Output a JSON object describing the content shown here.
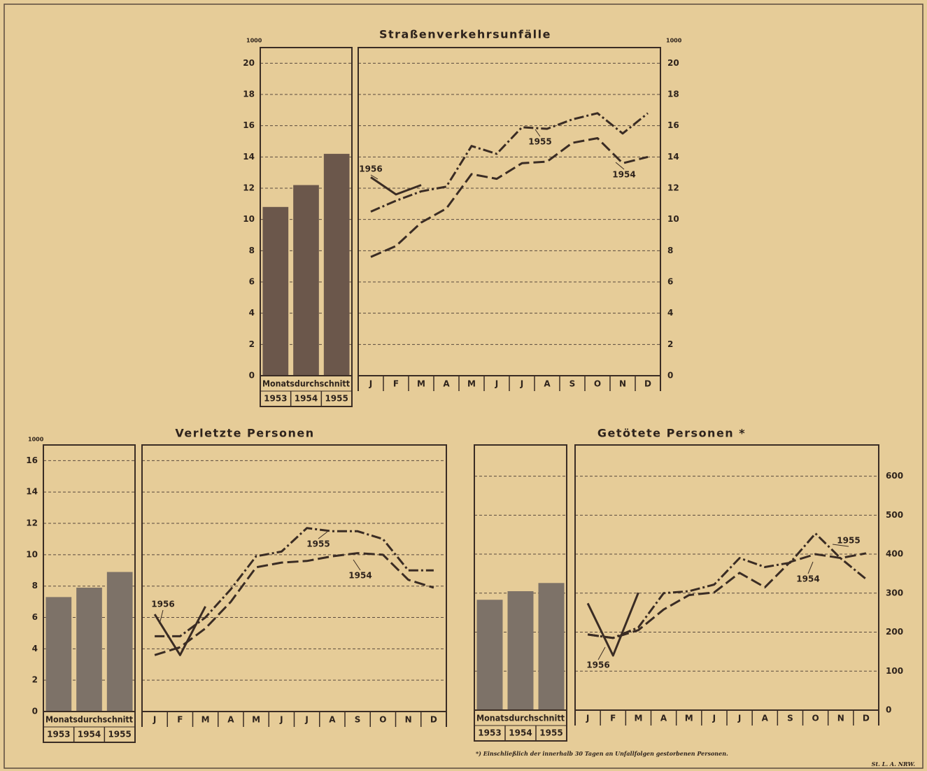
{
  "chart_data": [
    {
      "type": "bar",
      "unit": "1000",
      "group_label": "Monatsdurchschnitt",
      "categories": [
        "1953",
        "1954",
        "1955"
      ],
      "values": [
        10.8,
        12.2,
        14.2
      ],
      "color": "#6b574b",
      "ylim": [
        0,
        21
      ],
      "yticks": [
        0,
        2,
        4,
        6,
        8,
        10,
        12,
        14,
        16,
        18,
        20
      ],
      "tick_labels": "left",
      "grid": true
    },
    {
      "type": "line",
      "title": "Straßenverkehrsunfälle",
      "unit": "1000",
      "categories": [
        "J",
        "F",
        "M",
        "A",
        "M",
        "J",
        "J",
        "A",
        "S",
        "O",
        "N",
        "D"
      ],
      "series": [
        {
          "name": "1956",
          "style": "solid",
          "color": "#3a2c24",
          "values": [
            12.7,
            11.6,
            12.2,
            null,
            null,
            null,
            null,
            null,
            null,
            null,
            null,
            null
          ]
        },
        {
          "name": "1955",
          "style": "dashdot",
          "color": "#3a2c24",
          "values": [
            10.5,
            11.2,
            11.8,
            12.1,
            14.7,
            14.2,
            15.9,
            15.8,
            16.4,
            16.8,
            15.5,
            16.8
          ]
        },
        {
          "name": "1954",
          "style": "dashed",
          "color": "#3a2c24",
          "values": [
            7.6,
            8.3,
            9.8,
            10.7,
            12.9,
            12.6,
            13.6,
            13.7,
            14.9,
            15.2,
            13.6,
            14.0
          ]
        }
      ],
      "ylim": [
        0,
        21
      ],
      "yticks": [
        0,
        2,
        4,
        6,
        8,
        10,
        12,
        14,
        16,
        18,
        20
      ],
      "tick_labels": "right",
      "grid": true
    },
    {
      "type": "bar",
      "unit": "1000",
      "group_label": "Monatsdurchschnitt",
      "categories": [
        "1953",
        "1954",
        "1955"
      ],
      "values": [
        7.3,
        7.9,
        8.9
      ],
      "color": "#7d7268",
      "ylim": [
        0,
        17
      ],
      "yticks": [
        0,
        2,
        4,
        6,
        8,
        10,
        12,
        14,
        16
      ],
      "tick_labels": "left",
      "grid": true
    },
    {
      "type": "line",
      "title": "Verletzte Personen",
      "categories": [
        "J",
        "F",
        "M",
        "A",
        "M",
        "J",
        "J",
        "A",
        "S",
        "O",
        "N",
        "D"
      ],
      "series": [
        {
          "name": "1956",
          "style": "solid",
          "color": "#3a2c24",
          "values": [
            6.2,
            3.6,
            6.7,
            null,
            null,
            null,
            null,
            null,
            null,
            null,
            null,
            null
          ]
        },
        {
          "name": "1955",
          "style": "dashdot",
          "color": "#3a2c24",
          "values": [
            4.8,
            4.8,
            6.0,
            7.8,
            9.9,
            10.2,
            11.7,
            11.5,
            11.5,
            11.0,
            9.0,
            9.0
          ]
        },
        {
          "name": "1954",
          "style": "dashed",
          "color": "#3a2c24",
          "values": [
            3.6,
            4.1,
            5.3,
            7.0,
            9.2,
            9.5,
            9.6,
            9.9,
            10.1,
            10.0,
            8.4,
            7.9
          ]
        }
      ],
      "ylim": [
        0,
        17
      ],
      "yticks": [
        0,
        2,
        4,
        6,
        8,
        10,
        12,
        14,
        16
      ],
      "tick_labels": "none",
      "grid": true
    },
    {
      "type": "bar",
      "group_label": "Monatsdurchschnitt",
      "categories": [
        "1953",
        "1954",
        "1955"
      ],
      "values": [
        283,
        305,
        326
      ],
      "color": "#7d7268",
      "ylim": [
        0,
        680
      ],
      "yticks": [
        0,
        100,
        200,
        300,
        400,
        500,
        600
      ],
      "tick_labels": "none",
      "grid": true
    },
    {
      "type": "line",
      "title": "Getötete Personen *",
      "categories": [
        "J",
        "F",
        "M",
        "A",
        "M",
        "J",
        "J",
        "A",
        "S",
        "O",
        "N",
        "D"
      ],
      "series": [
        {
          "name": "1956",
          "style": "solid",
          "color": "#3a2c24",
          "values": [
            274,
            140,
            301,
            null,
            null,
            null,
            null,
            null,
            null,
            null,
            null,
            null
          ]
        },
        {
          "name": "1955",
          "style": "dashdot",
          "color": "#3a2c24",
          "values": [
            194,
            185,
            212,
            300,
            305,
            322,
            390,
            367,
            378,
            453,
            389,
            336
          ]
        },
        {
          "name": "1954",
          "style": "dashed",
          "color": "#3a2c24",
          "values": [
            194,
            185,
            205,
            258,
            295,
            302,
            352,
            315,
            380,
            400,
            390,
            402
          ]
        }
      ],
      "ylim": [
        0,
        680
      ],
      "yticks": [
        0,
        100,
        200,
        300,
        400,
        500,
        600
      ],
      "tick_labels": "right",
      "grid": true
    }
  ],
  "footnote": "*) Einschließlich der innerhalb 30 Tagen an Unfallfolgen gestorbenen Personen.",
  "source": "St. L. A. NRW."
}
